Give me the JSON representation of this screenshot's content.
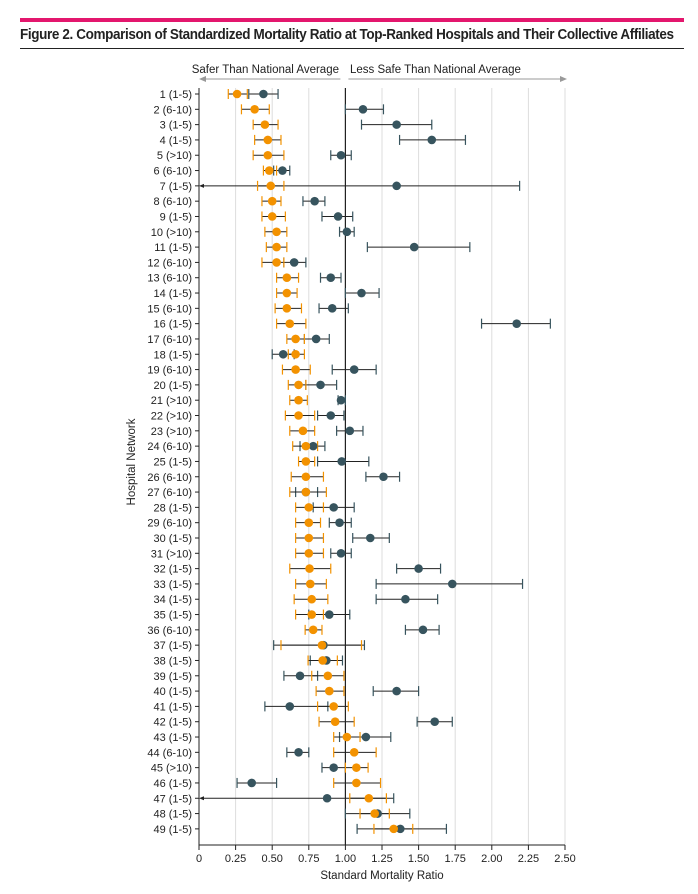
{
  "title": "Figure 2. Comparison of Standardized Mortality Ratio at Top-Ranked Hospitals and Their Collective Affiliates",
  "colors": {
    "accent_bar": "#e3176d",
    "orange_series": "#f39200",
    "dark_series": "#37545e",
    "grid": "#dddddd"
  },
  "chart_data": {
    "type": "forest",
    "xlabel": "Standard Mortality Ratio",
    "ylabel": "Hospital Network",
    "xlim": [
      0,
      2.5
    ],
    "xticks": [
      "0",
      "0.25",
      "0.50",
      "0.75",
      "1.00",
      "1.25",
      "1.50",
      "1.75",
      "2.00",
      "2.25",
      "2.50"
    ],
    "reference_line": 1.0,
    "grid": true,
    "direction_labels": {
      "left": "Safer Than National Average",
      "right": "Less Safe Than National Average"
    },
    "rows": [
      {
        "label": "1 (1-5)",
        "orange": [
          0.26,
          0.2,
          0.33
        ],
        "dark": [
          0.44,
          0.34,
          0.54
        ]
      },
      {
        "label": "2 (6-10)",
        "orange": [
          0.38,
          0.29,
          0.48
        ],
        "dark": [
          1.12,
          1.0,
          1.26
        ]
      },
      {
        "label": "3 (1-5)",
        "orange": [
          0.45,
          0.37,
          0.54
        ],
        "dark": [
          1.35,
          1.11,
          1.59
        ]
      },
      {
        "label": "4 (1-5)",
        "orange": [
          0.47,
          0.38,
          0.56
        ],
        "dark": [
          1.59,
          1.37,
          1.82
        ]
      },
      {
        "label": "5 (>10)",
        "orange": [
          0.47,
          0.37,
          0.58
        ],
        "dark": [
          0.97,
          0.9,
          1.04
        ]
      },
      {
        "label": "6 (6-10)",
        "orange": [
          0.48,
          0.44,
          0.53
        ],
        "dark": [
          0.57,
          0.51,
          0.62
        ]
      },
      {
        "label": "7 (1-5)",
        "orange": [
          0.49,
          0.4,
          0.58
        ],
        "dark": [
          1.35,
          null,
          2.19
        ]
      },
      {
        "label": "8 (6-10)",
        "orange": [
          0.5,
          0.43,
          0.56
        ],
        "dark": [
          0.79,
          0.71,
          0.86
        ]
      },
      {
        "label": "9 (1-5)",
        "orange": [
          0.5,
          0.43,
          0.59
        ],
        "dark": [
          0.95,
          0.84,
          1.05
        ]
      },
      {
        "label": "10 (>10)",
        "orange": [
          0.53,
          0.45,
          0.6
        ],
        "dark": [
          1.01,
          0.96,
          1.06
        ]
      },
      {
        "label": "11 (1-5)",
        "orange": [
          0.53,
          0.46,
          0.6
        ],
        "dark": [
          1.47,
          1.15,
          1.85
        ]
      },
      {
        "label": "12 (6-10)",
        "orange": [
          0.53,
          0.43,
          0.58
        ],
        "dark": [
          0.65,
          0.58,
          0.73
        ]
      },
      {
        "label": "13 (6-10)",
        "orange": [
          0.6,
          0.53,
          0.68
        ],
        "dark": [
          0.9,
          0.83,
          0.97
        ]
      },
      {
        "label": "14 (1-5)",
        "orange": [
          0.6,
          0.53,
          0.67
        ],
        "dark": [
          1.11,
          1.0,
          1.23
        ]
      },
      {
        "label": "15 (6-10)",
        "orange": [
          0.6,
          0.52,
          0.7
        ],
        "dark": [
          0.91,
          0.82,
          1.02
        ]
      },
      {
        "label": "16 (1-5)",
        "orange": [
          0.62,
          0.53,
          0.73
        ],
        "dark": [
          2.17,
          1.93,
          2.4
        ]
      },
      {
        "label": "17 (6-10)",
        "orange": [
          0.66,
          0.6,
          0.72
        ],
        "dark": [
          0.8,
          0.72,
          0.89
        ]
      },
      {
        "label": "18 (1-5)",
        "orange": [
          0.66,
          0.61,
          0.72
        ],
        "dark": [
          0.575,
          0.5,
          0.65
        ]
      },
      {
        "label": "19 (6-10)",
        "orange": [
          0.66,
          0.57,
          0.76
        ],
        "dark": [
          1.06,
          0.91,
          1.21
        ]
      },
      {
        "label": "20 (1-5)",
        "orange": [
          0.68,
          0.61,
          0.73
        ],
        "dark": [
          0.83,
          0.73,
          0.94
        ]
      },
      {
        "label": "21 (>10)",
        "orange": [
          0.68,
          0.62,
          0.74
        ],
        "dark": [
          0.97,
          0.95,
          1.0
        ]
      },
      {
        "label": "22 (>10)",
        "orange": [
          0.68,
          0.59,
          0.79
        ],
        "dark": [
          0.9,
          0.81,
          0.99
        ]
      },
      {
        "label": "23 (>10)",
        "orange": [
          0.71,
          0.62,
          0.79
        ],
        "dark": [
          1.03,
          0.94,
          1.12
        ]
      },
      {
        "label": "24 (6-10)",
        "orange": [
          0.73,
          0.64,
          0.81
        ],
        "dark": [
          0.78,
          0.69,
          0.86
        ]
      },
      {
        "label": "25 (1-5)",
        "orange": [
          0.73,
          0.68,
          0.79
        ],
        "dark": [
          0.975,
          0.81,
          1.16
        ]
      },
      {
        "label": "26 (6-10)",
        "orange": [
          0.73,
          0.63,
          0.85
        ],
        "dark": [
          1.26,
          1.14,
          1.37
        ]
      },
      {
        "label": "27 (6-10)",
        "orange": [
          0.73,
          0.62,
          0.87
        ],
        "dark": [
          0.73,
          0.66,
          0.81
        ]
      },
      {
        "label": "28 (1-5)",
        "orange": [
          0.75,
          0.66,
          0.85
        ],
        "dark": [
          0.92,
          0.78,
          1.06
        ]
      },
      {
        "label": "29 (6-10)",
        "orange": [
          0.75,
          0.66,
          0.83
        ],
        "dark": [
          0.96,
          0.89,
          1.04
        ]
      },
      {
        "label": "30 (1-5)",
        "orange": [
          0.75,
          0.66,
          0.85
        ],
        "dark": [
          1.17,
          1.05,
          1.3
        ]
      },
      {
        "label": "31 (>10)",
        "orange": [
          0.75,
          0.66,
          0.85
        ],
        "dark": [
          0.97,
          0.9,
          1.04
        ]
      },
      {
        "label": "32 (1-5)",
        "orange": [
          0.755,
          0.62,
          0.9
        ],
        "dark": [
          1.5,
          1.35,
          1.65
        ]
      },
      {
        "label": "33 (1-5)",
        "orange": [
          0.76,
          0.66,
          0.87
        ],
        "dark": [
          1.73,
          1.21,
          2.21
        ]
      },
      {
        "label": "34 (1-5)",
        "orange": [
          0.77,
          0.65,
          0.88
        ],
        "dark": [
          1.41,
          1.21,
          1.63
        ]
      },
      {
        "label": "35 (1-5)",
        "orange": [
          0.77,
          0.66,
          0.85
        ],
        "dark": [
          0.89,
          0.75,
          1.03
        ]
      },
      {
        "label": "36 (6-10)",
        "orange": [
          0.78,
          0.725,
          0.84
        ],
        "dark": [
          1.53,
          1.41,
          1.64
        ]
      },
      {
        "label": "37 (1-5)",
        "orange": [
          0.84,
          0.56,
          1.11
        ],
        "dark": [
          0.85,
          0.51,
          1.13
        ]
      },
      {
        "label": "38 (1-5)",
        "orange": [
          0.845,
          0.745,
          0.945
        ],
        "dark": [
          0.87,
          0.76,
          0.98
        ]
      },
      {
        "label": "39 (1-5)",
        "orange": [
          0.88,
          0.77,
          0.99
        ],
        "dark": [
          0.69,
          0.58,
          0.81
        ]
      },
      {
        "label": "40 (1-5)",
        "orange": [
          0.89,
          0.8,
          0.99
        ],
        "dark": [
          1.35,
          1.19,
          1.5
        ]
      },
      {
        "label": "41 (1-5)",
        "orange": [
          0.92,
          0.81,
          1.02
        ],
        "dark": [
          0.62,
          0.45,
          0.88
        ]
      },
      {
        "label": "42 (1-5)",
        "orange": [
          0.93,
          0.82,
          1.06
        ],
        "dark": [
          1.61,
          1.49,
          1.73
        ]
      },
      {
        "label": "43 (1-5)",
        "orange": [
          1.01,
          0.92,
          1.1
        ],
        "dark": [
          1.14,
          0.96,
          1.31
        ]
      },
      {
        "label": "44 (6-10)",
        "orange": [
          1.06,
          0.92,
          1.21
        ],
        "dark": [
          0.68,
          0.6,
          0.75
        ]
      },
      {
        "label": "45 (>10)",
        "orange": [
          1.075,
          1.0,
          1.155
        ],
        "dark": [
          0.92,
          0.84,
          1.0
        ]
      },
      {
        "label": "46 (1-5)",
        "orange": [
          1.075,
          0.92,
          1.24
        ],
        "dark": [
          0.36,
          0.26,
          0.53
        ]
      },
      {
        "label": "47 (1-5)",
        "orange": [
          1.16,
          1.03,
          1.28
        ],
        "dark": [
          0.875,
          null,
          1.33
        ]
      },
      {
        "label": "48 (1-5)",
        "orange": [
          1.2,
          1.1,
          1.3
        ],
        "dark": [
          1.22,
          1.0,
          1.44
        ]
      },
      {
        "label": "49 (1-5)",
        "orange": [
          1.33,
          1.195,
          1.46
        ],
        "dark": [
          1.375,
          1.08,
          1.69
        ]
      }
    ]
  }
}
